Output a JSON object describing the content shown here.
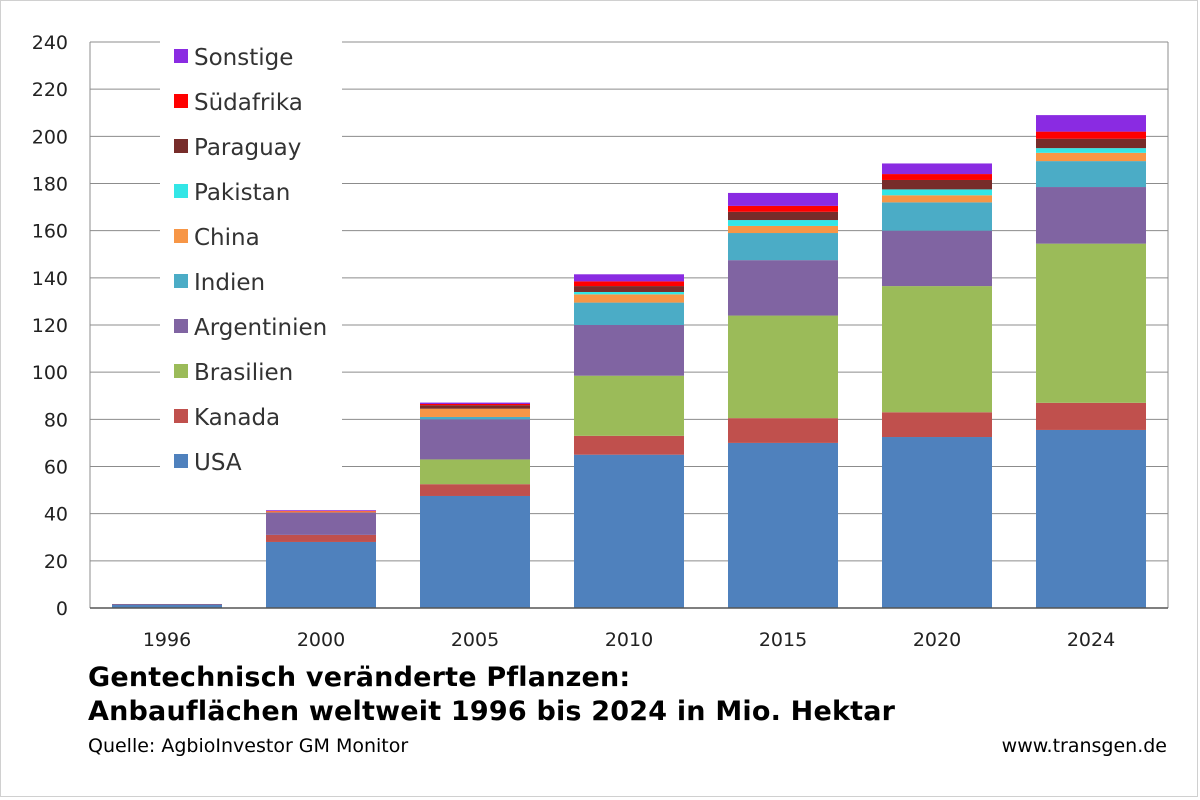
{
  "chart_data": {
    "type": "bar",
    "stacked": true,
    "title": "Gentechnisch veränderte Pflanzen:",
    "subtitle": "Anbauflächen weltweit 1996 bis 2024 in Mio. Hektar",
    "source": "Quelle: AgbioInvestor GM Monitor",
    "website": "www.transgen.de",
    "categories": [
      "1996",
      "2000",
      "2005",
      "2010",
      "2015",
      "2020",
      "2024"
    ],
    "ylim": [
      0,
      240
    ],
    "yticks": [
      0,
      20,
      40,
      60,
      80,
      100,
      120,
      140,
      160,
      180,
      200,
      220,
      240
    ],
    "grid": true,
    "legend_position": "top-left",
    "series": [
      {
        "name": "USA",
        "color": "#4F81BD",
        "values": [
          1.5,
          28,
          47.5,
          65,
          70,
          72.5,
          75.5
        ]
      },
      {
        "name": "Kanada",
        "color": "#C0504D",
        "values": [
          0.1,
          3,
          5,
          8,
          10.5,
          10.5,
          11.5
        ]
      },
      {
        "name": "Brasilien",
        "color": "#9BBB59",
        "values": [
          0,
          0,
          10.5,
          25.5,
          43.5,
          53.5,
          67.5
        ]
      },
      {
        "name": "Argentinien",
        "color": "#8064A2",
        "values": [
          0.1,
          9.5,
          17,
          21.5,
          23.5,
          23.5,
          24
        ]
      },
      {
        "name": "Indien",
        "color": "#4BACC6",
        "values": [
          0,
          0,
          1,
          9.5,
          11.5,
          12,
          11
        ]
      },
      {
        "name": "China",
        "color": "#F79646",
        "values": [
          0,
          0.5,
          3.5,
          3.5,
          3,
          3,
          3.5
        ]
      },
      {
        "name": "Pakistan",
        "color": "#33E6E6",
        "values": [
          0,
          0,
          0,
          1,
          2.5,
          2.5,
          2
        ]
      },
      {
        "name": "Paraguay",
        "color": "#772C2A",
        "values": [
          0,
          0,
          1.5,
          2.5,
          3.5,
          4,
          4
        ]
      },
      {
        "name": "Südafrika",
        "color": "#FF0000",
        "values": [
          0,
          0.2,
          0.5,
          2,
          2.5,
          2.5,
          3
        ]
      },
      {
        "name": "Sonstige",
        "color": "#8A2BE2",
        "values": [
          0,
          0.3,
          0.6,
          3,
          5.5,
          4.5,
          7
        ]
      }
    ]
  }
}
